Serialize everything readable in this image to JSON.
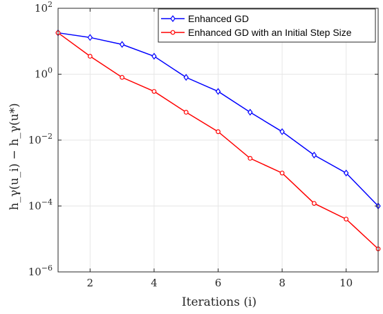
{
  "chart_data": {
    "type": "line",
    "xlabel": "Iterations (i)",
    "ylabel": "h_γ(u_i) − h_γ(u*)",
    "xlim": [
      1,
      11
    ],
    "ylim": [
      1e-06,
      100
    ],
    "yscale": "log",
    "grid": true,
    "legend_position": "top-right",
    "x_ticks": [
      2,
      4,
      6,
      8,
      10
    ],
    "x_tick_labels": [
      "2",
      "4",
      "6",
      "8",
      "10"
    ],
    "y_ticks": [
      1e-06,
      0.0001,
      0.01,
      1,
      100
    ],
    "y_tick_labels": [
      {
        "base": "10",
        "exp": "−6"
      },
      {
        "base": "10",
        "exp": "−4"
      },
      {
        "base": "10",
        "exp": "−2"
      },
      {
        "base": "10",
        "exp": "0"
      },
      {
        "base": "10",
        "exp": "2"
      }
    ],
    "x": [
      1,
      2,
      3,
      4,
      5,
      6,
      7,
      8,
      9,
      10,
      11
    ],
    "series": [
      {
        "name": "Enhanced GD",
        "color": "#0000ff",
        "marker": "diamond",
        "values": [
          18,
          13,
          8,
          3.5,
          0.8,
          0.3,
          0.07,
          0.018,
          0.0035,
          0.001,
          0.0001
        ]
      },
      {
        "name": "Enhanced GD with an Initial Step Size",
        "color": "#ff0000",
        "marker": "circle",
        "values": [
          18,
          3.5,
          0.8,
          0.3,
          0.07,
          0.018,
          0.0028,
          0.001,
          0.00012,
          4e-05,
          5e-06
        ]
      }
    ]
  }
}
